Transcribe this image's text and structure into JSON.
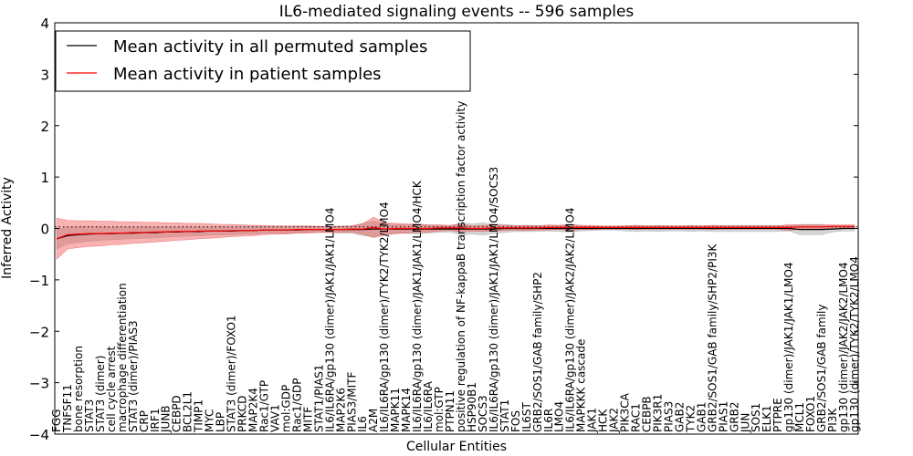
{
  "chart_data": {
    "type": "line",
    "title": "IL6-mediated signaling events -- 596 samples",
    "xlabel": "Cellular Entities",
    "ylabel": "Inferred Activity",
    "ylim": [
      -4,
      4
    ],
    "yticks": [
      -4,
      -3,
      -2,
      -1,
      0,
      1,
      2,
      3,
      4
    ],
    "grid": false,
    "legend_position": "top-left",
    "legend": [
      {
        "label": "Mean activity in all permuted samples",
        "color": "#000000"
      },
      {
        "label": "Mean activity in patient samples",
        "color": "#ff0000"
      }
    ],
    "categories": [
      "FGG",
      "TNFSF11",
      "bone resorption",
      "STAT3",
      "STAT3 (dimer)",
      "cell cycle arrest",
      "macrophage differentiation",
      "STAT3 (dimer)/PIAS3",
      "CRP",
      "IRF1",
      "JUNB",
      "CEBPD",
      "BCL2L1",
      "TIMP1",
      "MYC",
      "LBP",
      "STAT3 (dimer)/FOXO1",
      "PRKCD",
      "MAP2K4",
      "Rac1/GTP",
      "VAV1",
      "mol:GDP",
      "Rac1/GDP",
      "MITF",
      "STAT1/PIAS1",
      "IL6/IL6RA/gp130 (dimer)/JAK1/JAK1/LMO4",
      "MAP2K6",
      "PIAS3/MITF",
      "IL6",
      "A2M",
      "IL6/IL6RA/gp130 (dimer)/TYK2/TYK2/LMO4",
      "MAPK11",
      "MAPK14",
      "IL6/IL6RA/gp130 (dimer)/JAK1/JAK1/LMO4/HCK",
      "IL6/IL6RA",
      "mol:GTP",
      "PTPN11",
      "positive regulation of NF-kappaB transcription factor activity",
      "HSP90B1",
      "SOCS3",
      "IL6/IL6RA/gp130 (dimer)/JAK1/JAK1/LMO4/SOCS3",
      "STAT1",
      "FOS",
      "IL6ST",
      "GRB2/SOS1/GAB family/SHP2",
      "IL6R",
      "LMO4",
      "IL6/IL6RA/gp130 (dimer)/JAK2/JAK2/LMO4",
      "MAPKKK cascade",
      "JAK1",
      "HCK",
      "JAK2",
      "PIK3CA",
      "RAC1",
      "CEBPB",
      "PIK3R1",
      "PIAS3",
      "GAB2",
      "TYK2",
      "GAB1",
      "GRB2/SOS1/GAB family/SHP2/PI3K",
      "PIAS1",
      "GRB2",
      "JUN",
      "SOS1",
      "ELK1",
      "PTPRE",
      "gp130 (dimer)/JAK1/JAK1/LMO4",
      "MCL1",
      "FOXO1",
      "GRB2/SOS1/GAB family",
      "PI3K",
      "gp130 (dimer)/JAK2/JAK2/LMO4",
      "gp130 (dimer)/TYK2/TYK2/LMO4"
    ],
    "series": [
      {
        "name": "Mean activity in all permuted samples",
        "values": [
          -0.2,
          -0.14,
          -0.12,
          -0.11,
          -0.1,
          -0.1,
          -0.09,
          -0.09,
          -0.08,
          -0.08,
          -0.07,
          -0.07,
          -0.06,
          -0.06,
          -0.05,
          -0.05,
          -0.05,
          -0.04,
          -0.04,
          -0.03,
          -0.03,
          -0.03,
          -0.03,
          -0.02,
          -0.02,
          -0.02,
          -0.02,
          -0.02,
          -0.02,
          -0.01,
          -0.01,
          -0.01,
          -0.01,
          -0.01,
          -0.01,
          -0.01,
          -0.01,
          -0.01,
          -0.01,
          -0.01,
          -0.01,
          0,
          0,
          0,
          0,
          0,
          0,
          0,
          0,
          0,
          0,
          0,
          0,
          0,
          0,
          0,
          0,
          0,
          0,
          0,
          0,
          0,
          0,
          0,
          0,
          0,
          0,
          0,
          -0.02,
          -0.02,
          -0.02,
          -0.01,
          0,
          0
        ]
      },
      {
        "name": "Mean activity in patient samples",
        "values": [
          -0.2,
          -0.12,
          -0.11,
          -0.1,
          -0.1,
          -0.09,
          -0.09,
          -0.08,
          -0.08,
          -0.07,
          -0.07,
          -0.06,
          -0.06,
          -0.05,
          -0.05,
          -0.05,
          -0.04,
          -0.04,
          -0.04,
          -0.03,
          -0.03,
          -0.03,
          -0.02,
          -0.02,
          -0.02,
          -0.02,
          -0.02,
          -0.01,
          -0.01,
          0.02,
          -0.01,
          0,
          0,
          0,
          0,
          0.01,
          0.01,
          0.01,
          0,
          0,
          0.01,
          0.01,
          0.01,
          0.01,
          0.01,
          0.02,
          0.02,
          0.02,
          0.02,
          0.02,
          0.02,
          0.02,
          0.02,
          0.02,
          0.02,
          0.02,
          0.02,
          0.02,
          0.02,
          0.02,
          0.02,
          0.02,
          0.02,
          0.02,
          0.02,
          0.02,
          0.02,
          0.02,
          0.03,
          0.03,
          0.03,
          0.04,
          0.04,
          0.04
        ]
      }
    ],
    "patient_band_half_width": [
      0.4,
      0.28,
      0.26,
      0.25,
      0.24,
      0.23,
      0.22,
      0.21,
      0.2,
      0.19,
      0.18,
      0.17,
      0.16,
      0.15,
      0.14,
      0.13,
      0.12,
      0.11,
      0.1,
      0.09,
      0.08,
      0.08,
      0.07,
      0.07,
      0.06,
      0.06,
      0.06,
      0.06,
      0.1,
      0.2,
      0.12,
      0.1,
      0.09,
      0.08,
      0.07,
      0.06,
      0.05,
      0.08,
      0.05,
      0.06,
      0.06,
      0.05,
      0.04,
      0.05,
      0.04,
      0.05,
      0.04,
      0.06,
      0.04,
      0.04,
      0.03,
      0.03,
      0.03,
      0.04,
      0.03,
      0.03,
      0.03,
      0.03,
      0.03,
      0.03,
      0.04,
      0.03,
      0.03,
      0.03,
      0.03,
      0.03,
      0.03,
      0.06,
      0.04,
      0.04,
      0.04,
      0.03,
      0.03,
      0.03
    ],
    "permuted_band_half_width": [
      0.2,
      0.16,
      0.15,
      0.14,
      0.13,
      0.12,
      0.12,
      0.11,
      0.11,
      0.1,
      0.1,
      0.09,
      0.09,
      0.08,
      0.08,
      0.08,
      0.07,
      0.07,
      0.07,
      0.06,
      0.06,
      0.06,
      0.06,
      0.06,
      0.06,
      0.06,
      0.07,
      0.07,
      0.12,
      0.15,
      0.1,
      0.09,
      0.08,
      0.1,
      0.08,
      0.07,
      0.06,
      0.12,
      0.1,
      0.12,
      0.09,
      0.08,
      0.06,
      0.06,
      0.06,
      0.05,
      0.06,
      0.07,
      0.05,
      0.04,
      0.03,
      0.03,
      0.05,
      0.06,
      0.05,
      0.06,
      0.05,
      0.05,
      0.06,
      0.05,
      0.06,
      0.06,
      0.06,
      0.06,
      0.06,
      0.06,
      0.06,
      0.05,
      0.1,
      0.1,
      0.1,
      0.06,
      0.05,
      0.05
    ],
    "reference_line": 0.03
  }
}
